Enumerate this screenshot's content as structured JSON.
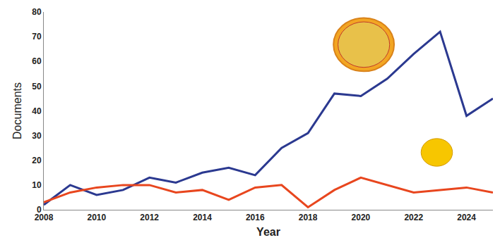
{
  "chart_data": {
    "type": "line",
    "x": [
      2008,
      2009,
      2010,
      2011,
      2012,
      2013,
      2014,
      2015,
      2016,
      2017,
      2018,
      2019,
      2020,
      2021,
      2022,
      2023,
      2024,
      2025
    ],
    "series": [
      {
        "color": "#2b3990",
        "values": [
          2,
          10,
          6,
          8,
          13,
          11,
          15,
          17,
          14,
          25,
          31,
          47,
          46,
          53,
          63,
          72,
          38,
          45
        ]
      },
      {
        "color": "#e8461e",
        "values": [
          3,
          7,
          9,
          10,
          10,
          7,
          8,
          4,
          9,
          10,
          1,
          8,
          13,
          10,
          7,
          8,
          9,
          7
        ]
      }
    ],
    "x_label": "Year",
    "y_label": "Documents",
    "xlim": [
      2008,
      2025
    ],
    "xticks": [
      2008,
      2010,
      2012,
      2014,
      2016,
      2018,
      2020,
      2022,
      2024
    ],
    "ylim": [
      0,
      80
    ],
    "yticks": [
      0,
      10,
      20,
      30,
      40,
      50,
      60,
      70,
      80
    ],
    "grid": false
  }
}
